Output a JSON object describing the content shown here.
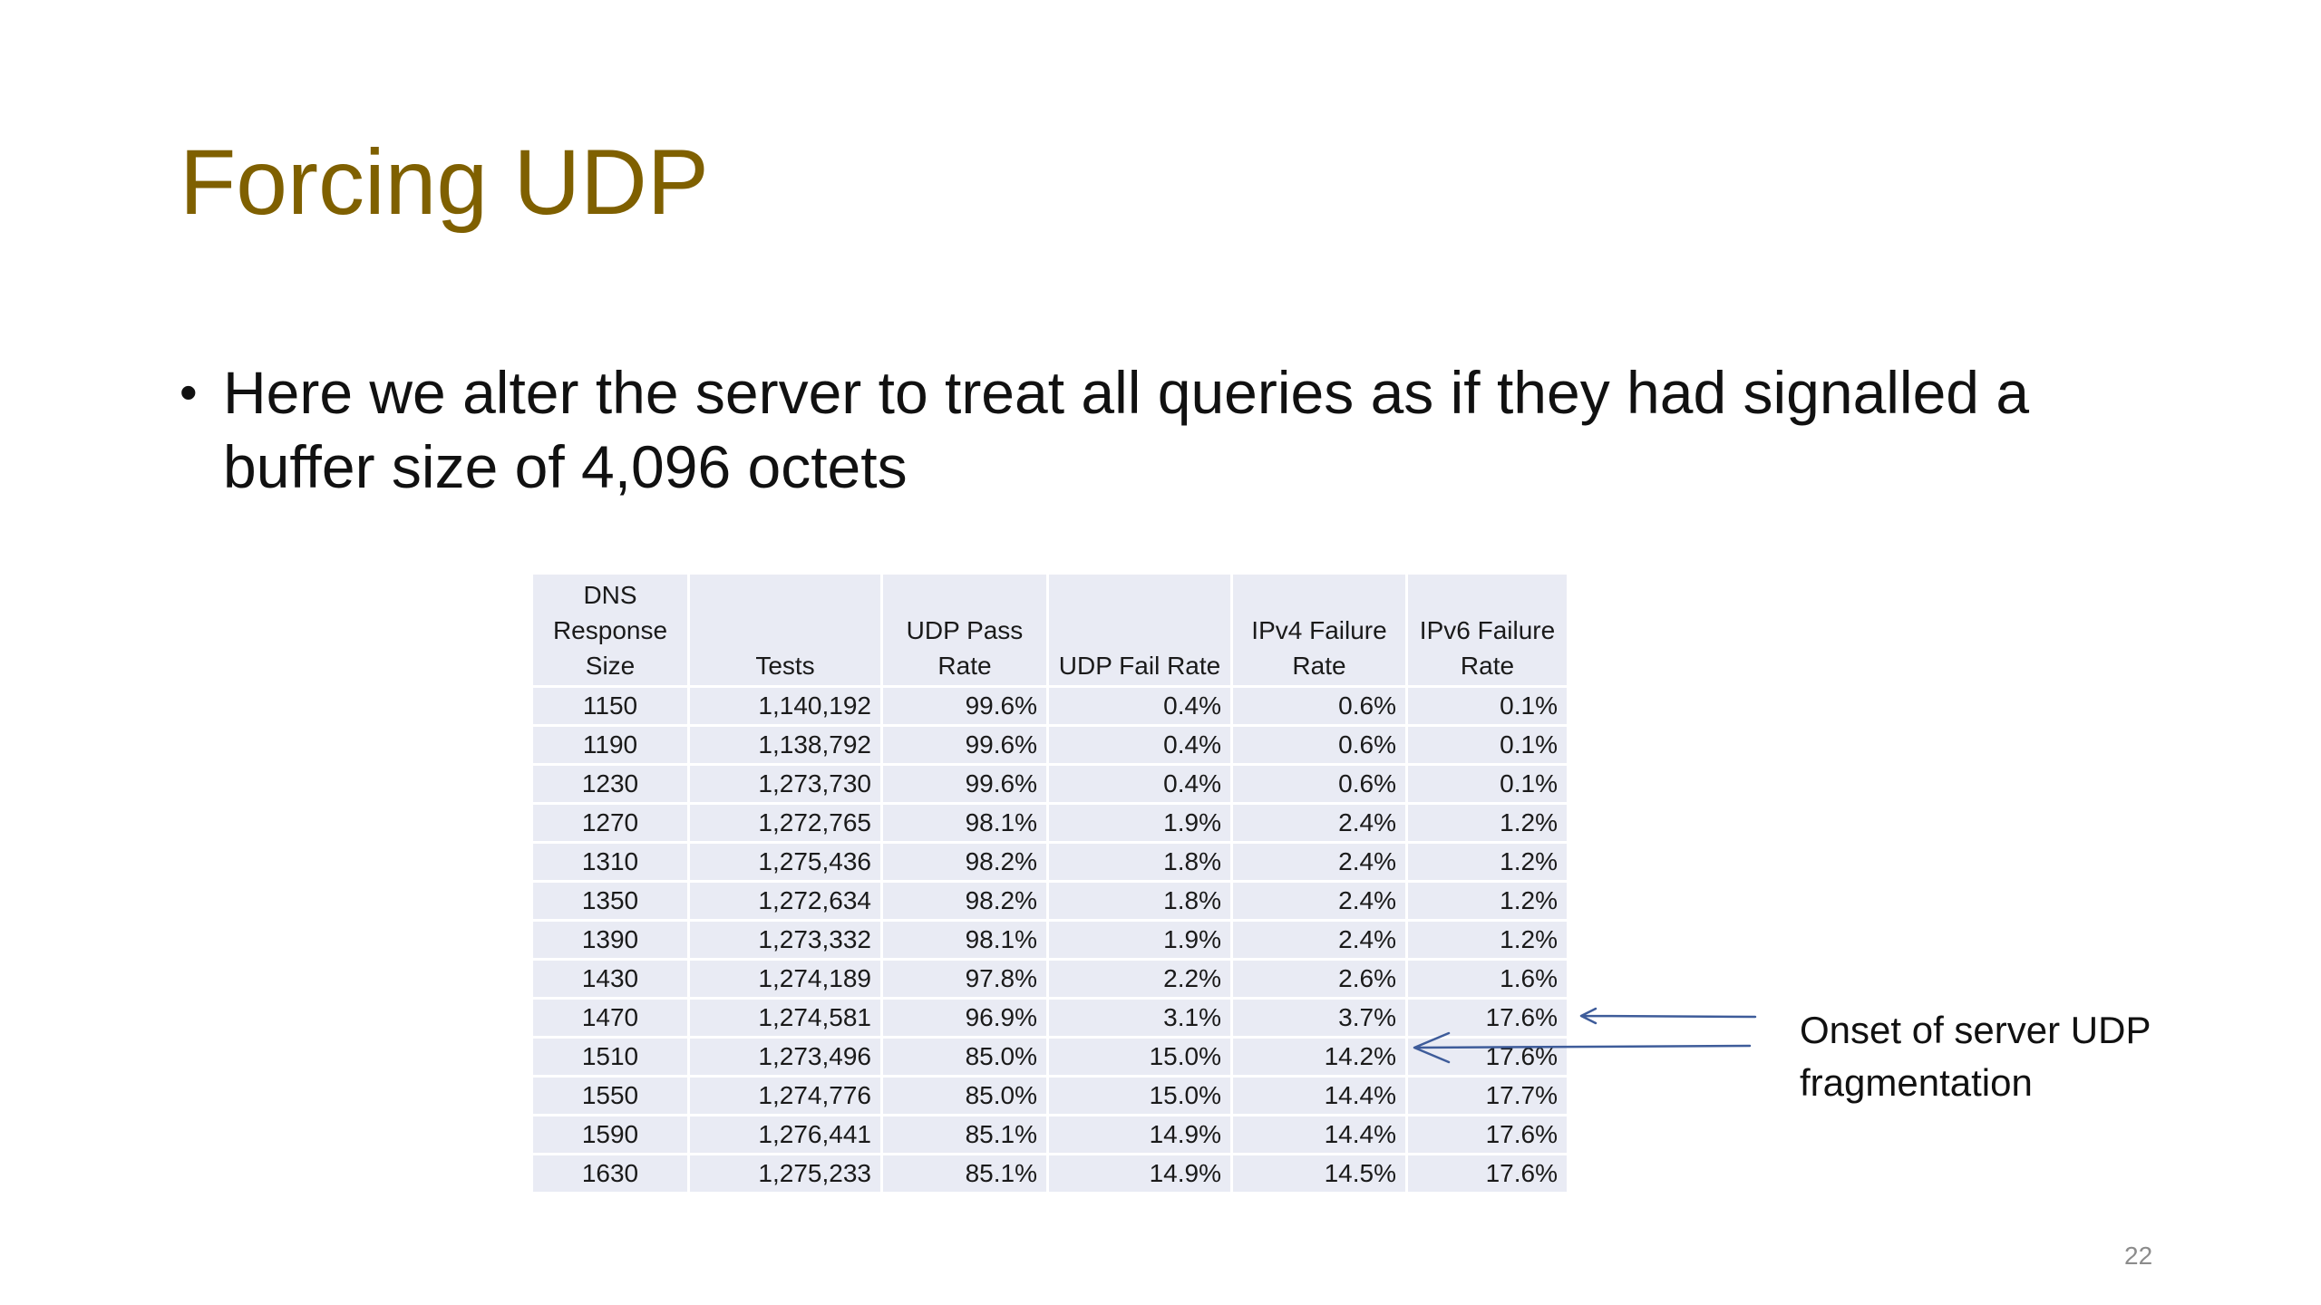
{
  "slide": {
    "title": "Forcing UDP",
    "bullet": "Here we alter the server to treat all queries as if they had signalled a buffer size of 4,096 octets",
    "bullet_marker": "•",
    "annotation_line1": "Onset of server UDP",
    "annotation_line2": "fragmentation",
    "page_number": "22",
    "title_color": "#7f6000",
    "table_fill": "#e9ebf4",
    "arrow_color": "#3e5c9a"
  },
  "table": {
    "headers": [
      "DNS Response Size",
      "Tests",
      "UDP Pass Rate",
      "UDP Fail Rate",
      "IPv4 Failure Rate",
      "IPv6 Failure Rate"
    ],
    "rows": [
      [
        "1150",
        "1,140,192",
        "99.6%",
        "0.4%",
        "0.6%",
        "0.1%"
      ],
      [
        "1190",
        "1,138,792",
        "99.6%",
        "0.4%",
        "0.6%",
        "0.1%"
      ],
      [
        "1230",
        "1,273,730",
        "99.6%",
        "0.4%",
        "0.6%",
        "0.1%"
      ],
      [
        "1270",
        "1,272,765",
        "98.1%",
        "1.9%",
        "2.4%",
        "1.2%"
      ],
      [
        "1310",
        "1,275,436",
        "98.2%",
        "1.8%",
        "2.4%",
        "1.2%"
      ],
      [
        "1350",
        "1,272,634",
        "98.2%",
        "1.8%",
        "2.4%",
        "1.2%"
      ],
      [
        "1390",
        "1,273,332",
        "98.1%",
        "1.9%",
        "2.4%",
        "1.2%"
      ],
      [
        "1430",
        "1,274,189",
        "97.8%",
        "2.2%",
        "2.6%",
        "1.6%"
      ],
      [
        "1470",
        "1,274,581",
        "96.9%",
        "3.1%",
        "3.7%",
        "17.6%"
      ],
      [
        "1510",
        "1,273,496",
        "85.0%",
        "15.0%",
        "14.2%",
        "17.6%"
      ],
      [
        "1550",
        "1,274,776",
        "85.0%",
        "15.0%",
        "14.4%",
        "17.7%"
      ],
      [
        "1590",
        "1,276,441",
        "85.1%",
        "14.9%",
        "14.4%",
        "17.6%"
      ],
      [
        "1630",
        "1,275,233",
        "85.1%",
        "14.9%",
        "14.5%",
        "17.6%"
      ]
    ]
  }
}
